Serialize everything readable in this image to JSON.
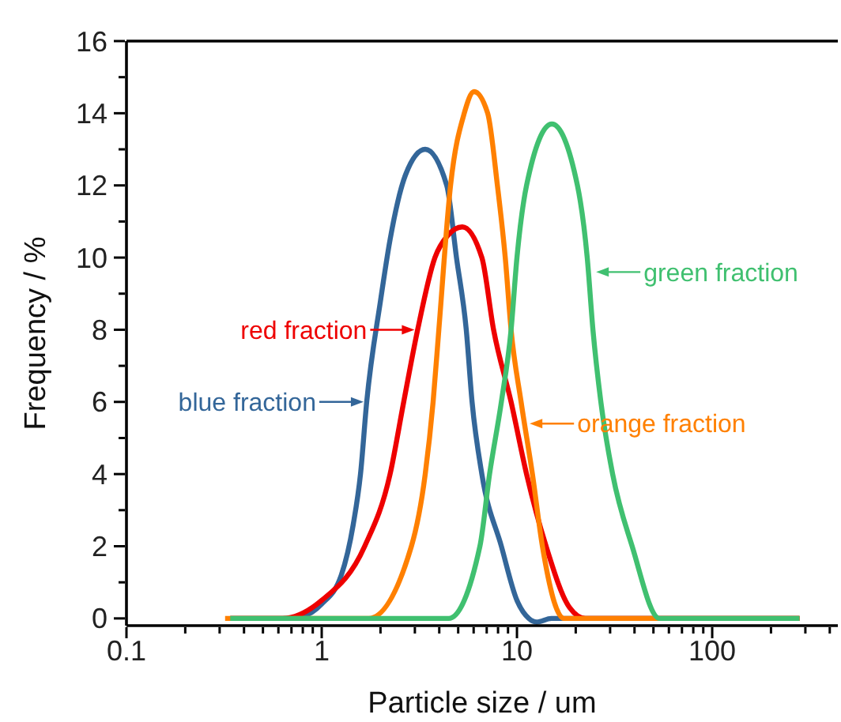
{
  "chart_data": {
    "type": "line",
    "xlabel": "Particle size / um",
    "ylabel": "Frequency / %",
    "log": "x",
    "marker": "none",
    "line_style": "solid",
    "xlim": [
      0.1,
      440
    ],
    "ylim": [
      -0.2,
      16
    ],
    "xticks": [
      0.1,
      {
        "value": 0.2,
        "label": null
      },
      {
        "value": 0.3,
        "label": null
      },
      {
        "value": 0.4,
        "label": null
      },
      {
        "value": 0.5,
        "label": null
      },
      {
        "value": 0.6,
        "label": null
      },
      {
        "value": 0.7,
        "label": null
      },
      {
        "value": 0.8,
        "label": null
      },
      {
        "value": 0.9,
        "label": null
      },
      1,
      {
        "value": 2,
        "label": null
      },
      {
        "value": 3,
        "label": null
      },
      {
        "value": 4,
        "label": null
      },
      {
        "value": 5,
        "label": null
      },
      {
        "value": 6,
        "label": null
      },
      {
        "value": 7,
        "label": null
      },
      {
        "value": 8,
        "label": null
      },
      {
        "value": 9,
        "label": null
      },
      10,
      {
        "value": 20,
        "label": null
      },
      {
        "value": 30,
        "label": null
      },
      {
        "value": 40,
        "label": null
      },
      {
        "value": 50,
        "label": null
      },
      {
        "value": 60,
        "label": null
      },
      {
        "value": 70,
        "label": null
      },
      {
        "value": 80,
        "label": null
      },
      {
        "value": 90,
        "label": null
      },
      100,
      {
        "value": 200,
        "label": null
      },
      {
        "value": 300,
        "label": null
      },
      {
        "value": 400,
        "label": null
      }
    ],
    "yticks": [
      0,
      {
        "value": 1,
        "label": null
      },
      2,
      {
        "value": 3,
        "label": null
      },
      4,
      {
        "value": 5,
        "label": null
      },
      6,
      {
        "value": 7,
        "label": null
      },
      8,
      {
        "value": 9,
        "label": null
      },
      10,
      {
        "value": 11,
        "label": null
      },
      12,
      {
        "value": 13,
        "label": null
      },
      14,
      {
        "value": 15,
        "label": null
      },
      16
    ],
    "series": [
      {
        "color": "#336699",
        "x": [
          0.34,
          0.63,
          0.79,
          1,
          1.26,
          1.45,
          1.58,
          1.7,
          2.0,
          2.24,
          2.69,
          3.39,
          4.37,
          4.9,
          5.5,
          5.89,
          6.61,
          8.32,
          10,
          11.5,
          12.6,
          15,
          280
        ],
        "values": [
          0,
          0,
          0.05,
          0.4,
          1.2,
          2.6,
          4,
          6,
          8.8,
          10.5,
          12.3,
          13,
          12,
          10,
          8,
          6,
          4,
          2,
          0.5,
          0,
          -0.1,
          0,
          0
        ]
      },
      {
        "color": "#ee0000",
        "x": [
          0.34,
          0.63,
          1,
          1.66,
          2.24,
          2.63,
          3.1,
          3.8,
          4.4,
          5.25,
          6.61,
          7.59,
          9.33,
          11.2,
          14.1,
          18.6,
          22.4,
          280
        ],
        "values": [
          0,
          0,
          0.5,
          2,
          4,
          6,
          8,
          10,
          10.6,
          10.85,
          10,
          8,
          6,
          4,
          2,
          0.3,
          0,
          0
        ]
      },
      {
        "color": "#ff8000",
        "x": [
          0.32,
          1.74,
          2.88,
          3.39,
          3.72,
          3.98,
          4.57,
          5.37,
          6.03,
          7.08,
          7.94,
          8.71,
          9.33,
          10.5,
          12.0,
          13.5,
          17.4,
          280
        ],
        "values": [
          0,
          0,
          2,
          4,
          6,
          8,
          12,
          14,
          14.6,
          14,
          12,
          10,
          8,
          6,
          4,
          2,
          0,
          0
        ]
      },
      {
        "color": "#40c070",
        "x": [
          0.34,
          4.47,
          6.46,
          7.24,
          8.32,
          9.33,
          10,
          11.2,
          15.1,
          20.4,
          22.9,
          24.5,
          26.9,
          30.9,
          38.9,
          53.7,
          280
        ],
        "values": [
          0,
          0,
          2,
          4,
          6,
          8,
          10,
          12,
          13.7,
          12,
          10,
          8,
          6,
          4,
          2,
          0,
          0
        ]
      }
    ],
    "annotations": [
      {
        "text": "blue fraction",
        "x": 1.7,
        "y": 6
      },
      {
        "text": "red fraction",
        "x": 3.1,
        "y": 8
      },
      {
        "text": "orange fraction",
        "x": 11.2,
        "y": 5.4
      },
      {
        "text": "green fraction",
        "x": 24.5,
        "y": 9.6
      }
    ]
  }
}
